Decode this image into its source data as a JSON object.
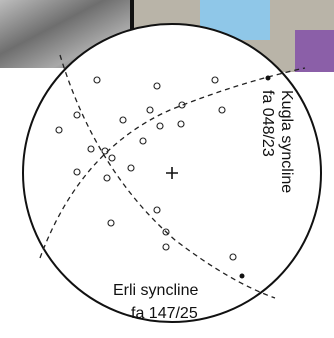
{
  "labels": {
    "kugla": {
      "name": "Kugla syncline",
      "fold_axis": "fa 048/23"
    },
    "erli": {
      "name": "Erli syncline",
      "fold_axis": "fa 147/25"
    }
  }
}
